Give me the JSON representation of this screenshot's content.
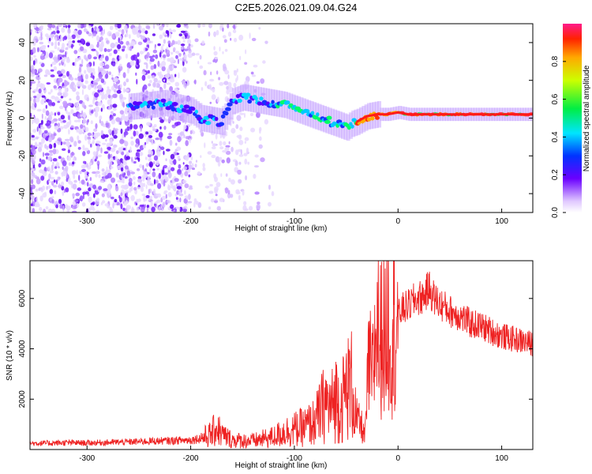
{
  "title": "C2E5.2026.021.09.04.G24",
  "chart_data": [
    {
      "type": "heatmap",
      "xlabel": "Height of straight line (km)",
      "ylabel": "Frequency (Hz)",
      "xlim": [
        -355,
        130
      ],
      "ylim": [
        -50,
        50
      ],
      "xticks": [
        -300,
        -200,
        -100,
        0,
        100
      ],
      "xtick_labels": [
        "-300",
        "-200",
        "-100",
        "0",
        "100"
      ],
      "yticks": [
        -40,
        -20,
        0,
        20,
        40
      ],
      "ytick_labels": [
        "-40",
        "-20",
        "0",
        "20",
        "40"
      ],
      "ridge": {
        "x": [
          -260,
          -240,
          -225,
          -215,
          -200,
          -190,
          -170,
          -160,
          -150,
          -140,
          -130,
          -120,
          -110,
          -100,
          -90,
          -80,
          -70,
          -60,
          -50,
          -45,
          -40,
          -30,
          -20,
          -10,
          0,
          10,
          30,
          60,
          90,
          110,
          130
        ],
        "y": [
          6,
          7,
          8,
          6,
          4,
          0,
          -2,
          9,
          11,
          10,
          9,
          8,
          7,
          5,
          3,
          1,
          -1,
          -3,
          -5,
          -3,
          -2,
          1,
          2,
          2,
          3,
          2,
          2,
          2,
          2,
          2,
          2
        ]
      },
      "colorbar": {
        "label": "Normalized spectral amplitude",
        "min": 0.0,
        "max": 1.0,
        "ticks": [
          0.0,
          0.2,
          0.4,
          0.6,
          0.8
        ],
        "tick_labels": [
          "0.0",
          "0.2",
          "0.4",
          "0.6",
          "0.8"
        ]
      },
      "grid": false
    },
    {
      "type": "line",
      "xlabel": "Height of straight line (km)",
      "ylabel": "SNR (10 * v/v)",
      "xlim": [
        -355,
        130
      ],
      "ylim": [
        0,
        7500
      ],
      "xticks": [
        -300,
        -200,
        -100,
        0,
        100
      ],
      "xtick_labels": [
        "-300",
        "-200",
        "-100",
        "0",
        "100"
      ],
      "yticks": [
        2000,
        4000,
        6000
      ],
      "ytick_labels": [
        "2000",
        "4000",
        "6000"
      ],
      "color": "#ee2222",
      "x": [
        -355,
        -340,
        -320,
        -300,
        -280,
        -260,
        -240,
        -220,
        -200,
        -190,
        -180,
        -175,
        -170,
        -160,
        -150,
        -140,
        -130,
        -120,
        -110,
        -100,
        -90,
        -80,
        -75,
        -70,
        -65,
        -60,
        -55,
        -50,
        -45,
        -40,
        -35,
        -32,
        -30,
        -28,
        -25,
        -22,
        -20,
        -18,
        -15,
        -12,
        -10,
        -8,
        -5,
        -2,
        0,
        5,
        10,
        15,
        20,
        25,
        30,
        35,
        40,
        50,
        60,
        70,
        80,
        90,
        100,
        110,
        120,
        130
      ],
      "y": [
        250,
        250,
        270,
        260,
        280,
        300,
        330,
        350,
        380,
        450,
        600,
        900,
        600,
        380,
        350,
        340,
        420,
        500,
        700,
        800,
        900,
        1100,
        1500,
        1900,
        1600,
        2100,
        1800,
        2400,
        2600,
        1200,
        900,
        500,
        2000,
        3500,
        2800,
        4200,
        5500,
        3800,
        5200,
        4000,
        6000,
        4500,
        4800,
        5200,
        5300,
        5600,
        5700,
        5900,
        6000,
        6100,
        6400,
        6000,
        5800,
        5500,
        5300,
        5000,
        4900,
        4700,
        4500,
        4400,
        4300,
        4200
      ]
    }
  ]
}
